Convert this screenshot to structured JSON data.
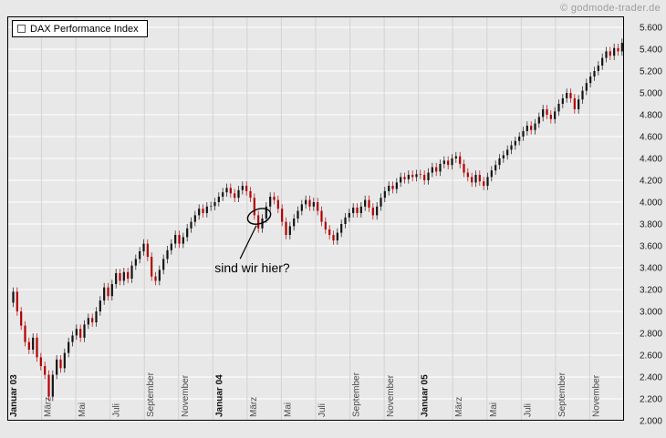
{
  "header": {
    "copyright": "© godmode-trader.de"
  },
  "legend": {
    "label": "DAX Performance Index"
  },
  "colors": {
    "background": "#e8e8e8",
    "grid_h": "#ffffff",
    "grid_v": "#d2d2d2",
    "up": "#141414",
    "down": "#b30000",
    "border": "#000000",
    "tick_text": "#1a1a1a",
    "month_text": "#4a4a4a",
    "month_text_bold": "#111111",
    "copyright_text": "#9c9c9c",
    "annotation": "#000000"
  },
  "chart_data": {
    "type": "candlestick",
    "title": "DAX Performance Index",
    "interval": "weekly",
    "months_total": 36,
    "ylim": [
      2000,
      5700
    ],
    "grid": true,
    "y_ticks": [
      {
        "value": 5600,
        "label": "5.600"
      },
      {
        "value": 5400,
        "label": "5.400"
      },
      {
        "value": 5200,
        "label": "5.200"
      },
      {
        "value": 5000,
        "label": "5.000"
      },
      {
        "value": 4800,
        "label": "4.800"
      },
      {
        "value": 4600,
        "label": "4.600"
      },
      {
        "value": 4400,
        "label": "4.400"
      },
      {
        "value": 4200,
        "label": "4.200"
      },
      {
        "value": 4000,
        "label": "4.000"
      },
      {
        "value": 3800,
        "label": "3.800"
      },
      {
        "value": 3600,
        "label": "3.600"
      },
      {
        "value": 3400,
        "label": "3.400"
      },
      {
        "value": 3200,
        "label": "3.200"
      },
      {
        "value": 3000,
        "label": "3.000"
      },
      {
        "value": 2800,
        "label": "2.800"
      },
      {
        "value": 2600,
        "label": "2.600"
      },
      {
        "value": 2400,
        "label": "2.400"
      },
      {
        "value": 2200,
        "label": "2.200"
      },
      {
        "value": 2000,
        "label": "2.000"
      }
    ],
    "x_labels": [
      {
        "label": "Januar 03",
        "month": 0,
        "bold": true
      },
      {
        "label": "März",
        "month": 2,
        "bold": false
      },
      {
        "label": "Mai",
        "month": 4,
        "bold": false
      },
      {
        "label": "Juli",
        "month": 6,
        "bold": false
      },
      {
        "label": "September",
        "month": 8,
        "bold": false
      },
      {
        "label": "November",
        "month": 10,
        "bold": false
      },
      {
        "label": "Januar 04",
        "month": 12,
        "bold": true
      },
      {
        "label": "März",
        "month": 14,
        "bold": false
      },
      {
        "label": "Mai",
        "month": 16,
        "bold": false
      },
      {
        "label": "Juli",
        "month": 18,
        "bold": false
      },
      {
        "label": "September",
        "month": 20,
        "bold": false
      },
      {
        "label": "November",
        "month": 22,
        "bold": false
      },
      {
        "label": "Januar 05",
        "month": 24,
        "bold": true
      },
      {
        "label": "März",
        "month": 26,
        "bold": false
      },
      {
        "label": "Mai",
        "month": 28,
        "bold": false
      },
      {
        "label": "Juli",
        "month": 30,
        "bold": false
      },
      {
        "label": "September",
        "month": 32,
        "bold": false
      },
      {
        "label": "November",
        "month": 34,
        "bold": false
      }
    ],
    "series": [
      {
        "name": "DAX Performance Index",
        "values": [
          3080,
          3180,
          3000,
          2870,
          2720,
          2650,
          2760,
          2580,
          2500,
          2420,
          2220,
          2420,
          2560,
          2480,
          2620,
          2720,
          2780,
          2840,
          2760,
          2880,
          2940,
          2900,
          3000,
          3100,
          3220,
          3140,
          3250,
          3350,
          3280,
          3360,
          3300,
          3420,
          3480,
          3550,
          3620,
          3500,
          3320,
          3280,
          3380,
          3480,
          3560,
          3620,
          3700,
          3620,
          3680,
          3760,
          3820,
          3880,
          3940,
          3900,
          3960,
          3965,
          4000,
          4050,
          4090,
          4130,
          4080,
          4040,
          4110,
          4150,
          4100,
          4040,
          3880,
          3760,
          3850,
          3960,
          4050,
          4020,
          3940,
          3820,
          3700,
          3780,
          3850,
          3920,
          3980,
          4020,
          3960,
          4000,
          3920,
          3820,
          3750,
          3700,
          3650,
          3720,
          3800,
          3860,
          3900,
          3950,
          3900,
          3960,
          4020,
          3950,
          3880,
          3960,
          4040,
          4100,
          4150,
          4120,
          4180,
          4230,
          4210,
          4250,
          4230,
          4256,
          4250,
          4200,
          4270,
          4320,
          4280,
          4350,
          4380,
          4340,
          4400,
          4420,
          4350,
          4270,
          4230,
          4180,
          4250,
          4190,
          4150,
          4230,
          4290,
          4340,
          4400,
          4430,
          4480,
          4520,
          4560,
          4600,
          4650,
          4700,
          4660,
          4720,
          4780,
          4850,
          4800,
          4760,
          4830,
          4900,
          4950,
          5000,
          4950,
          4850,
          4940,
          5020,
          5090,
          5150,
          5200,
          5250,
          5320,
          5380,
          5340,
          5410,
          5380,
          5458
        ]
      }
    ],
    "annotation": {
      "text": "sind wir hier?",
      "ellipse": {
        "month": 14.7,
        "value": 3870
      },
      "text_at": {
        "month": 12.1,
        "value": 3340
      }
    }
  }
}
